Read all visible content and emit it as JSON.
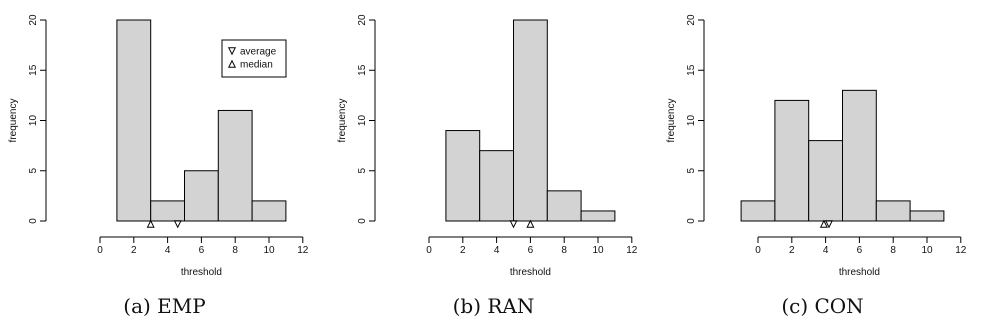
{
  "chart_data": [
    {
      "type": "bar",
      "caption": "(a) EMP",
      "xlabel": "threshold",
      "ylabel": "frequency",
      "xlim": [
        -1,
        13
      ],
      "ylim": [
        0,
        20
      ],
      "xticks": [
        0,
        2,
        4,
        6,
        8,
        10,
        12
      ],
      "yticks": [
        0,
        5,
        10,
        15,
        20
      ],
      "bins": [
        {
          "from": 1,
          "to": 3,
          "count": 20
        },
        {
          "from": 3,
          "to": 5,
          "count": 2
        },
        {
          "from": 5,
          "to": 7,
          "count": 5
        },
        {
          "from": 7,
          "to": 9,
          "count": 11
        },
        {
          "from": 9,
          "to": 11,
          "count": 2
        }
      ],
      "average": 4.6,
      "median": 3.0,
      "legend": {
        "position": "top-right",
        "entries": [
          {
            "label": "average",
            "marker": "down-triangle"
          },
          {
            "label": "median",
            "marker": "up-triangle"
          }
        ]
      }
    },
    {
      "type": "bar",
      "caption": "(b) RAN",
      "xlabel": "threshold",
      "ylabel": "frequency",
      "xlim": [
        -1,
        13
      ],
      "ylim": [
        0,
        20
      ],
      "xticks": [
        0,
        2,
        4,
        6,
        8,
        10,
        12
      ],
      "yticks": [
        0,
        5,
        10,
        15,
        20
      ],
      "bins": [
        {
          "from": 1,
          "to": 3,
          "count": 9
        },
        {
          "from": 3,
          "to": 5,
          "count": 7
        },
        {
          "from": 5,
          "to": 7,
          "count": 20
        },
        {
          "from": 7,
          "to": 9,
          "count": 3
        },
        {
          "from": 9,
          "to": 11,
          "count": 1
        }
      ],
      "average": 5.0,
      "median": 6.0
    },
    {
      "type": "bar",
      "caption": "(c) CON",
      "xlabel": "threshold",
      "ylabel": "frequency",
      "xlim": [
        -1,
        13
      ],
      "ylim": [
        0,
        20
      ],
      "xticks": [
        0,
        2,
        4,
        6,
        8,
        10,
        12
      ],
      "yticks": [
        0,
        5,
        10,
        15,
        20
      ],
      "bins": [
        {
          "from": -1,
          "to": 1,
          "count": 2
        },
        {
          "from": 1,
          "to": 3,
          "count": 12
        },
        {
          "from": 3,
          "to": 5,
          "count": 8
        },
        {
          "from": 5,
          "to": 7,
          "count": 13
        },
        {
          "from": 7,
          "to": 9,
          "count": 2
        },
        {
          "from": 9,
          "to": 11,
          "count": 1
        }
      ],
      "average": 4.2,
      "median": 3.9
    }
  ],
  "colors": {
    "bar_fill": "#d3d3d3",
    "bar_stroke": "#000000",
    "axis": "#000000",
    "text": "#111111"
  }
}
